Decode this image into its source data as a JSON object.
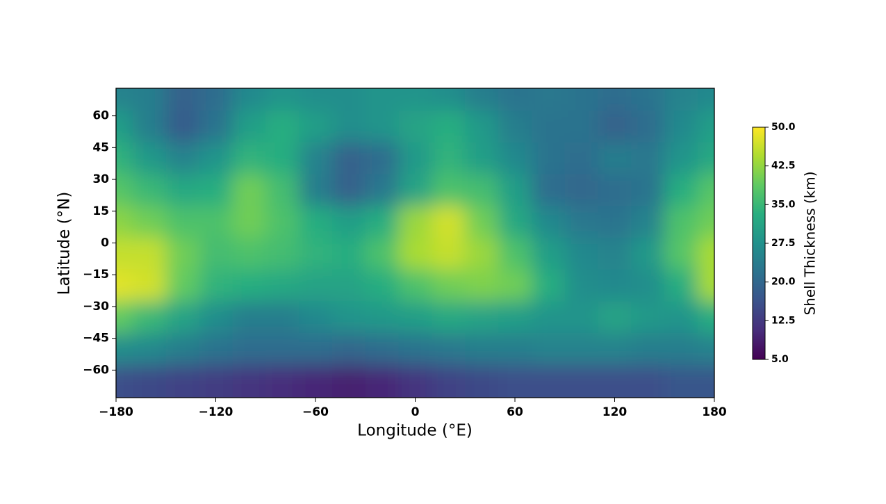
{
  "chart_data": {
    "type": "heatmap",
    "xlabel": "Longitude (°E)",
    "ylabel": "Latitude (°N)",
    "colorbar_label": "Shell Thickness (km)",
    "colormap": "viridis",
    "x": [
      -180,
      -160,
      -140,
      -120,
      -100,
      -80,
      -60,
      -40,
      -20,
      0,
      20,
      40,
      60,
      80,
      100,
      120,
      140,
      160,
      180
    ],
    "y": [
      70,
      55,
      40,
      25,
      10,
      -5,
      -20,
      -35,
      -50,
      -65
    ],
    "z": [
      [
        25,
        24,
        19,
        21,
        26,
        28,
        27,
        27,
        28,
        28,
        27,
        24,
        22,
        23,
        22,
        21,
        22,
        25,
        26
      ],
      [
        30,
        24,
        18,
        22,
        30,
        33,
        30,
        27,
        28,
        31,
        33,
        29,
        24,
        22,
        22,
        19,
        21,
        26,
        30
      ],
      [
        34,
        29,
        25,
        28,
        34,
        33,
        25,
        19,
        21,
        29,
        34,
        30,
        26,
        22,
        21,
        24,
        23,
        28,
        32
      ],
      [
        38,
        35,
        32,
        33,
        40,
        36,
        24,
        19,
        23,
        31,
        37,
        36,
        30,
        21,
        20,
        21,
        22,
        33,
        38
      ],
      [
        42,
        40,
        37,
        37,
        40,
        37,
        33,
        30,
        33,
        43,
        47,
        40,
        32,
        26,
        23,
        22,
        25,
        37,
        40
      ],
      [
        46,
        46,
        40,
        36,
        37,
        36,
        34,
        33,
        37,
        44,
        46,
        43,
        37,
        30,
        26,
        25,
        29,
        38,
        44
      ],
      [
        48,
        47,
        39,
        34,
        33,
        32,
        31,
        31,
        33,
        37,
        40,
        41,
        40,
        33,
        27,
        26,
        27,
        33,
        44
      ],
      [
        39,
        35,
        31,
        27,
        24,
        24,
        26,
        28,
        29,
        30,
        32,
        31,
        30,
        28,
        28,
        31,
        29,
        28,
        33
      ],
      [
        27,
        26,
        24,
        22,
        21,
        21,
        21,
        20,
        21,
        22,
        23,
        24,
        24,
        25,
        25,
        25,
        24,
        24,
        25
      ],
      [
        16,
        15,
        14,
        13,
        12,
        11,
        10,
        9,
        10,
        12,
        14,
        15,
        16,
        16,
        16,
        16,
        16,
        17,
        17
      ]
    ],
    "xlim": [
      -180,
      180
    ],
    "ylim": [
      -73,
      73
    ],
    "zlim": [
      5,
      50
    ],
    "xticks": [
      {
        "value": -180,
        "label": "−180"
      },
      {
        "value": -120,
        "label": "−120"
      },
      {
        "value": -60,
        "label": "−60"
      },
      0,
      60,
      120,
      180
    ],
    "yticks": [
      {
        "value": -60,
        "label": "−60"
      },
      {
        "value": -45,
        "label": "−45"
      },
      {
        "value": -30,
        "label": "−30"
      },
      {
        "value": -15,
        "label": "−15"
      },
      0,
      15,
      30,
      45,
      60
    ],
    "zticks": [
      {
        "value": 5,
        "label": "5.0"
      },
      12.5,
      {
        "value": 20,
        "label": "20.0"
      },
      27.5,
      {
        "value": 35,
        "label": "35.0"
      },
      42.5,
      {
        "value": 50,
        "label": "50.0"
      }
    ]
  }
}
